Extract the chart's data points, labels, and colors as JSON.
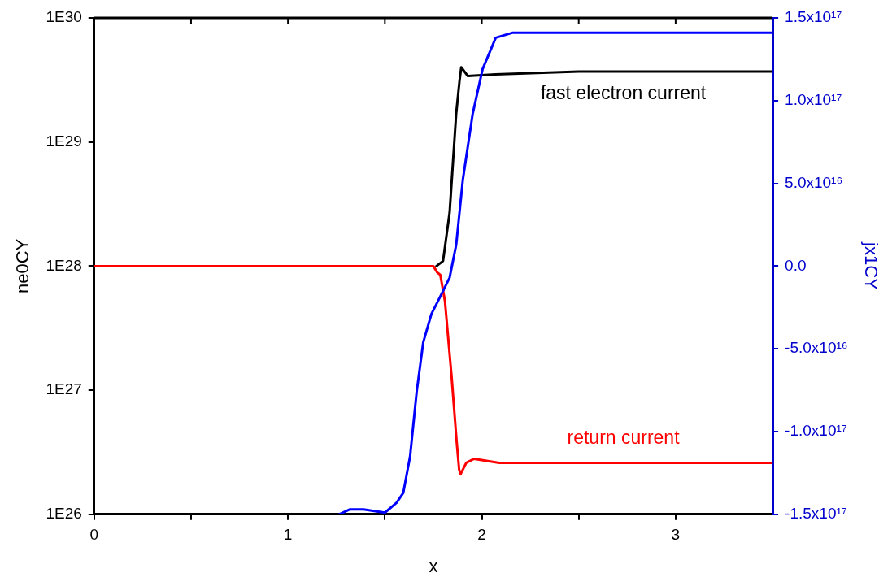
{
  "chart_data": {
    "type": "line",
    "xlabel": "x",
    "ylabel": "ne0CY",
    "y2label": "jx1CY",
    "log": "y",
    "grid": false,
    "legend": false,
    "marker": "none",
    "line_style": "solid",
    "xlim": [
      0,
      3.5
    ],
    "xticks": [
      0,
      {
        "value": 0.5,
        "label": null
      },
      1,
      {
        "value": 1.5,
        "label": null
      },
      2,
      {
        "value": 2.5,
        "label": null
      },
      3
    ],
    "ylim": [
      1e+26,
      1e+30
    ],
    "yticks": [
      {
        "value": 1e+26,
        "label": "1E26"
      },
      {
        "value": 1e+27,
        "label": "1E27"
      },
      {
        "value": 1e+28,
        "label": "1E28"
      },
      {
        "value": 1e+29,
        "label": "1E29"
      },
      {
        "value": 1e+30,
        "label": "1E30"
      }
    ],
    "y2lim": [
      -1.5e+17,
      1.5e+17
    ],
    "y2ticks": [
      {
        "value": -1.5e+17,
        "label": "-1.5x10¹⁷"
      },
      {
        "value": -1e+17,
        "label": "-1.0x10¹⁷"
      },
      {
        "value": -5e+16,
        "label": "-5.0x10¹⁶"
      },
      {
        "value": 0,
        "label": "0.0"
      },
      {
        "value": 5e+16,
        "label": "5.0x10¹⁶"
      },
      {
        "value": 1e+17,
        "label": "1.0x10¹⁷"
      },
      {
        "value": 1.5e+17,
        "label": "1.5x10¹⁷"
      }
    ],
    "series": [
      {
        "name": "fast electron current",
        "color": "#000000",
        "x": [
          1.766,
          1.8,
          1.834,
          1.868,
          1.885,
          1.894,
          1.928,
          2.07,
          2.5,
          3.0,
          3.5
        ],
        "values": [
          1e+28,
          1.1e+28,
          2.7e+28,
          1.7e+29,
          3.1e+29,
          4e+29,
          3.4e+29,
          3.5e+29,
          3.7e+29,
          3.7e+29,
          3.7e+29
        ]
      },
      {
        "name": "return current",
        "color": "#ff0000",
        "x": [
          0,
          1.0,
          1.5,
          1.75,
          1.77,
          1.786,
          1.81,
          1.844,
          1.87,
          1.883,
          1.89,
          1.92,
          1.96,
          2.09,
          2.5,
          3.0,
          3.5
        ],
        "values": [
          1e+28,
          1e+28,
          1e+28,
          1e+28,
          8.9e+27,
          8.5e+27,
          5.2e+27,
          1.3e+27,
          3.9e+26,
          2.3e+26,
          2.1e+26,
          2.6e+26,
          2.8e+26,
          2.6e+26,
          2.6e+26,
          2.6e+26,
          2.6e+26
        ]
      },
      {
        "color": "#0000ff",
        "axis": "y2",
        "x": [
          1.264,
          1.32,
          1.39,
          1.5,
          1.56,
          1.595,
          1.63,
          1.664,
          1.698,
          1.74,
          1.783,
          1.834,
          1.868,
          1.902,
          1.953,
          2.004,
          2.072,
          2.157,
          2.5,
          3.0,
          3.5
        ],
        "values": [
          -1.5e+17,
          -1.47e+17,
          -1.47e+17,
          -1.49e+17,
          -1.43e+17,
          -1.37e+17,
          -1.15e+17,
          -7.6e+16,
          -4.6e+16,
          -2.9e+16,
          -1.9e+16,
          -7000000000000000.0,
          1.3e+16,
          5.2e+16,
          9.2e+16,
          1.19e+17,
          1.38e+17,
          1.41e+17,
          1.41e+17,
          1.41e+17,
          1.41e+17
        ]
      }
    ]
  }
}
